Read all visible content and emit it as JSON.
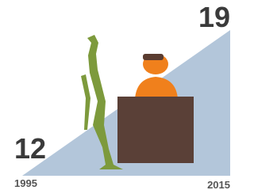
{
  "start": {
    "value": "12",
    "year": "1995"
  },
  "end": {
    "value": "19",
    "year": "2015"
  }
}
